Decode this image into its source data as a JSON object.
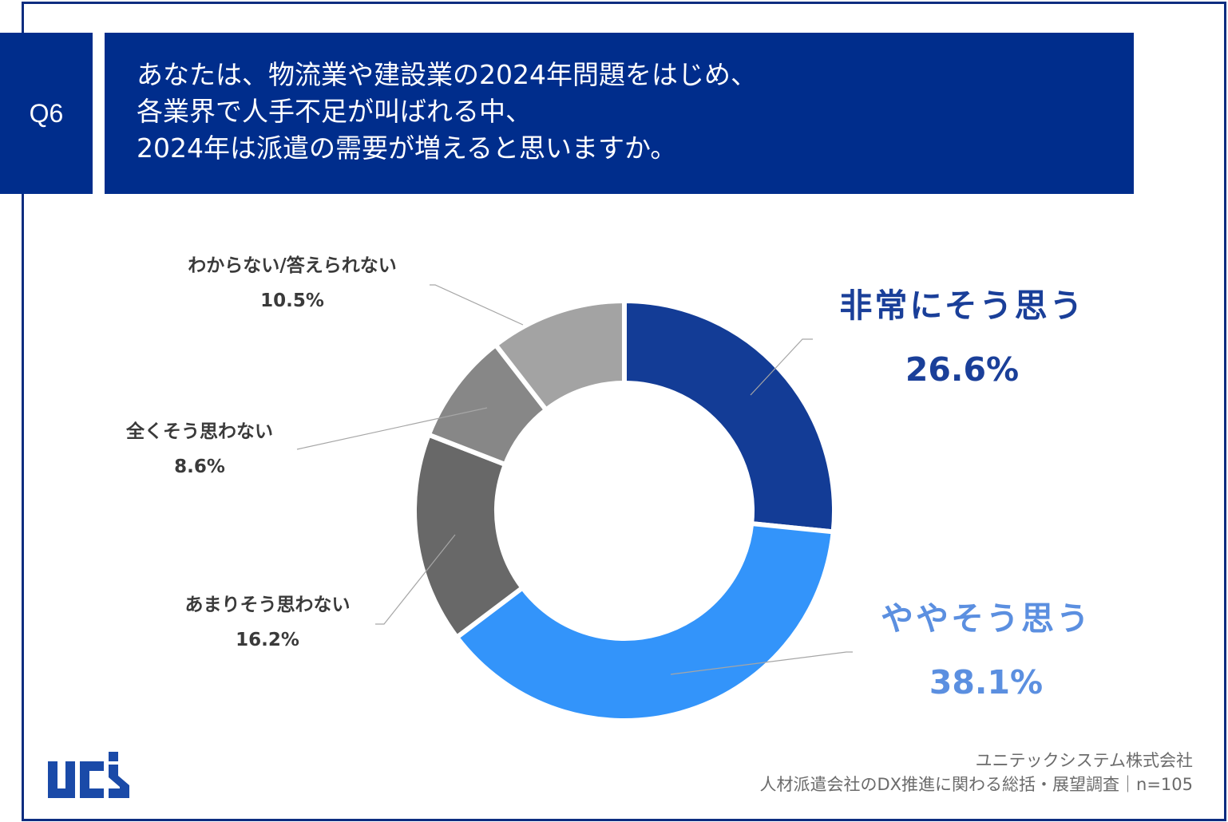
{
  "header": {
    "question_number": "Q6",
    "question_lines": [
      "あなたは、物流業や建設業の2024年問題をはじめ、",
      "各業界で人手不足が叫ばれる中、",
      "2024年は派遣の需要が増えると思いますか。"
    ]
  },
  "colors": {
    "frame": "#0d2d80",
    "header_bg": "#002d8c",
    "very_much": "#133c96",
    "somewhat": "#3394fa",
    "not_much": "#686868",
    "not_at_all": "#878787",
    "unknown": "#a3a3a3",
    "label_dark_blue": "#1a3f99",
    "label_light_blue": "#5b8fe0",
    "label_gray": "#3a3a3a",
    "leader_line": "#a6a6a6"
  },
  "labels": {
    "very_much": {
      "name": "非常にそう思う",
      "pct": "26.6%"
    },
    "somewhat": {
      "name": "ややそう思う",
      "pct": "38.1%"
    },
    "not_much": {
      "name": "あまりそう思わない",
      "pct": "16.2%"
    },
    "not_at_all": {
      "name": "全くそう思わない",
      "pct": "8.6%"
    },
    "unknown": {
      "name": "わからない/答えられない",
      "pct": "10.5%"
    }
  },
  "footer": {
    "company": "ユニテックシステム株式会社",
    "survey": "人材派遣会社のDX推進に関わる総括・展望調査｜n=105"
  },
  "logo": {
    "text": "ucs"
  },
  "chart_data": {
    "type": "pie",
    "subtype": "donut",
    "title": "あなたは、物流業や建設業の2024年問題をはじめ、各業界で人手不足が叫ばれる中、2024年は派遣の需要が増えると思いますか。",
    "categories": [
      "非常にそう思う",
      "ややそう思う",
      "あまりそう思わない",
      "全くそう思わない",
      "わからない/答えられない"
    ],
    "values": [
      26.6,
      38.1,
      16.2,
      8.6,
      10.5
    ],
    "unit": "%",
    "colors": [
      "#133c96",
      "#3394fa",
      "#686868",
      "#878787",
      "#a3a3a3"
    ],
    "start_angle": "12 o'clock",
    "direction": "clockwise",
    "n": 105,
    "legend": "none (data labels with leader lines)"
  }
}
